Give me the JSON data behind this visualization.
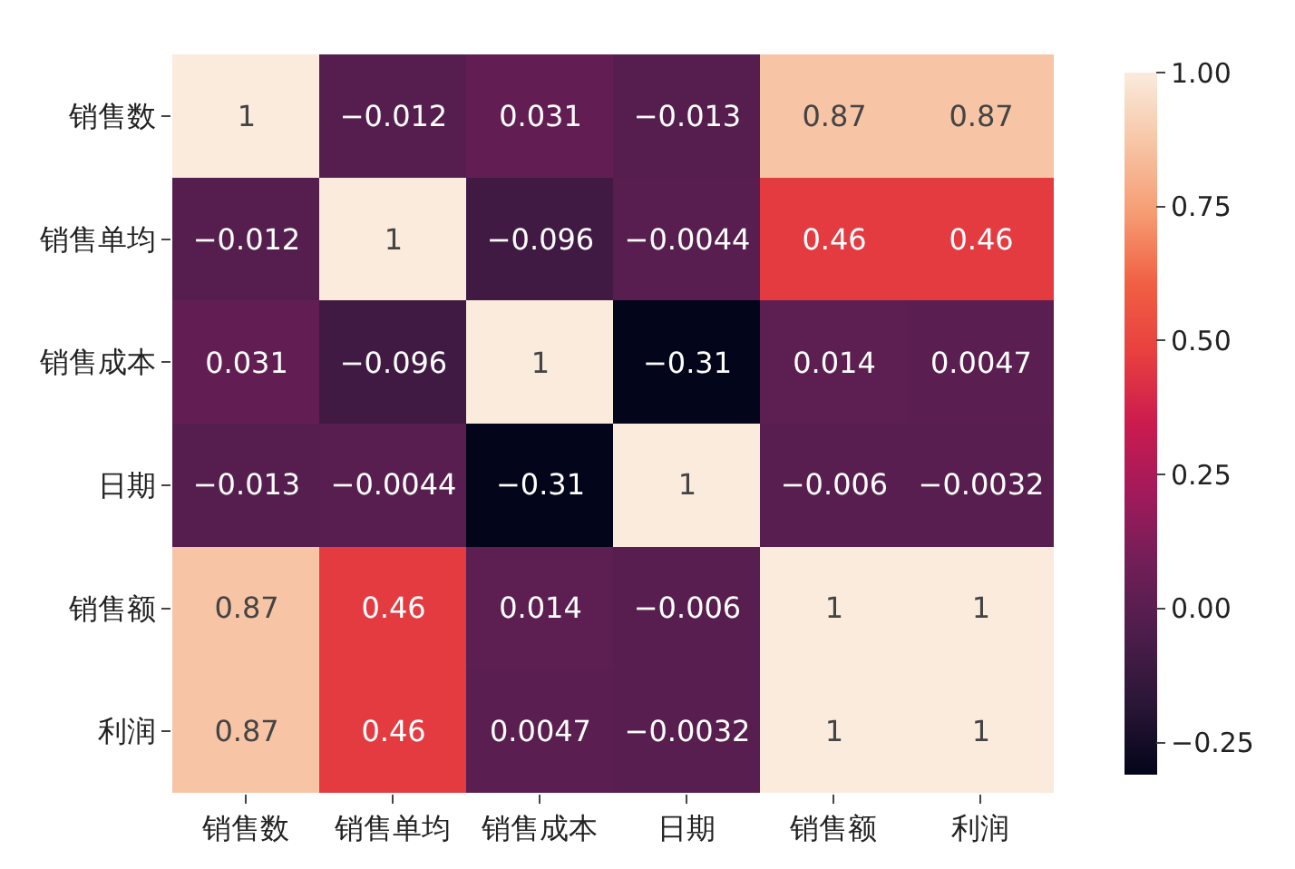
{
  "chart_data": {
    "type": "heatmap",
    "categories": [
      "销售数",
      "销售单均",
      "销售成本",
      "日期",
      "销售额",
      "利润"
    ],
    "y_categories": [
      "销售数",
      "销售单均",
      "销售成本",
      "日期",
      "销售额",
      "利润"
    ],
    "cells": [
      [
        1,
        -0.012,
        0.031,
        -0.013,
        0.87,
        0.87
      ],
      [
        -0.012,
        1,
        -0.096,
        -0.0044,
        0.46,
        0.46
      ],
      [
        0.031,
        -0.096,
        1,
        -0.31,
        0.014,
        0.0047
      ],
      [
        -0.013,
        -0.0044,
        -0.31,
        1,
        -0.006,
        -0.0032
      ],
      [
        0.87,
        0.46,
        0.014,
        -0.006,
        1,
        1
      ],
      [
        0.87,
        0.46,
        0.0047,
        -0.0032,
        1,
        1
      ]
    ],
    "cell_labels": [
      [
        "1",
        "−0.012",
        "0.031",
        "−0.013",
        "0.87",
        "0.87"
      ],
      [
        "−0.012",
        "1",
        "−0.096",
        "−0.0044",
        "0.46",
        "0.46"
      ],
      [
        "0.031",
        "−0.096",
        "1",
        "−0.31",
        "0.014",
        "0.0047"
      ],
      [
        "−0.013",
        "−0.0044",
        "−0.31",
        "1",
        "−0.006",
        "−0.0032"
      ],
      [
        "0.87",
        "0.46",
        "0.014",
        "−0.006",
        "1",
        "1"
      ],
      [
        "0.87",
        "0.46",
        "0.0047",
        "−0.0032",
        "1",
        "1"
      ]
    ],
    "clim": [
      -0.31,
      1
    ],
    "cticks": [
      {
        "value": -0.25,
        "label": "−0.25"
      },
      {
        "value": 0,
        "label": "0.00"
      },
      {
        "value": 0.25,
        "label": "0.25"
      },
      {
        "value": 0.5,
        "label": "0.50"
      },
      {
        "value": 0.75,
        "label": "0.75"
      },
      {
        "value": 1,
        "label": "1.00"
      }
    ]
  }
}
